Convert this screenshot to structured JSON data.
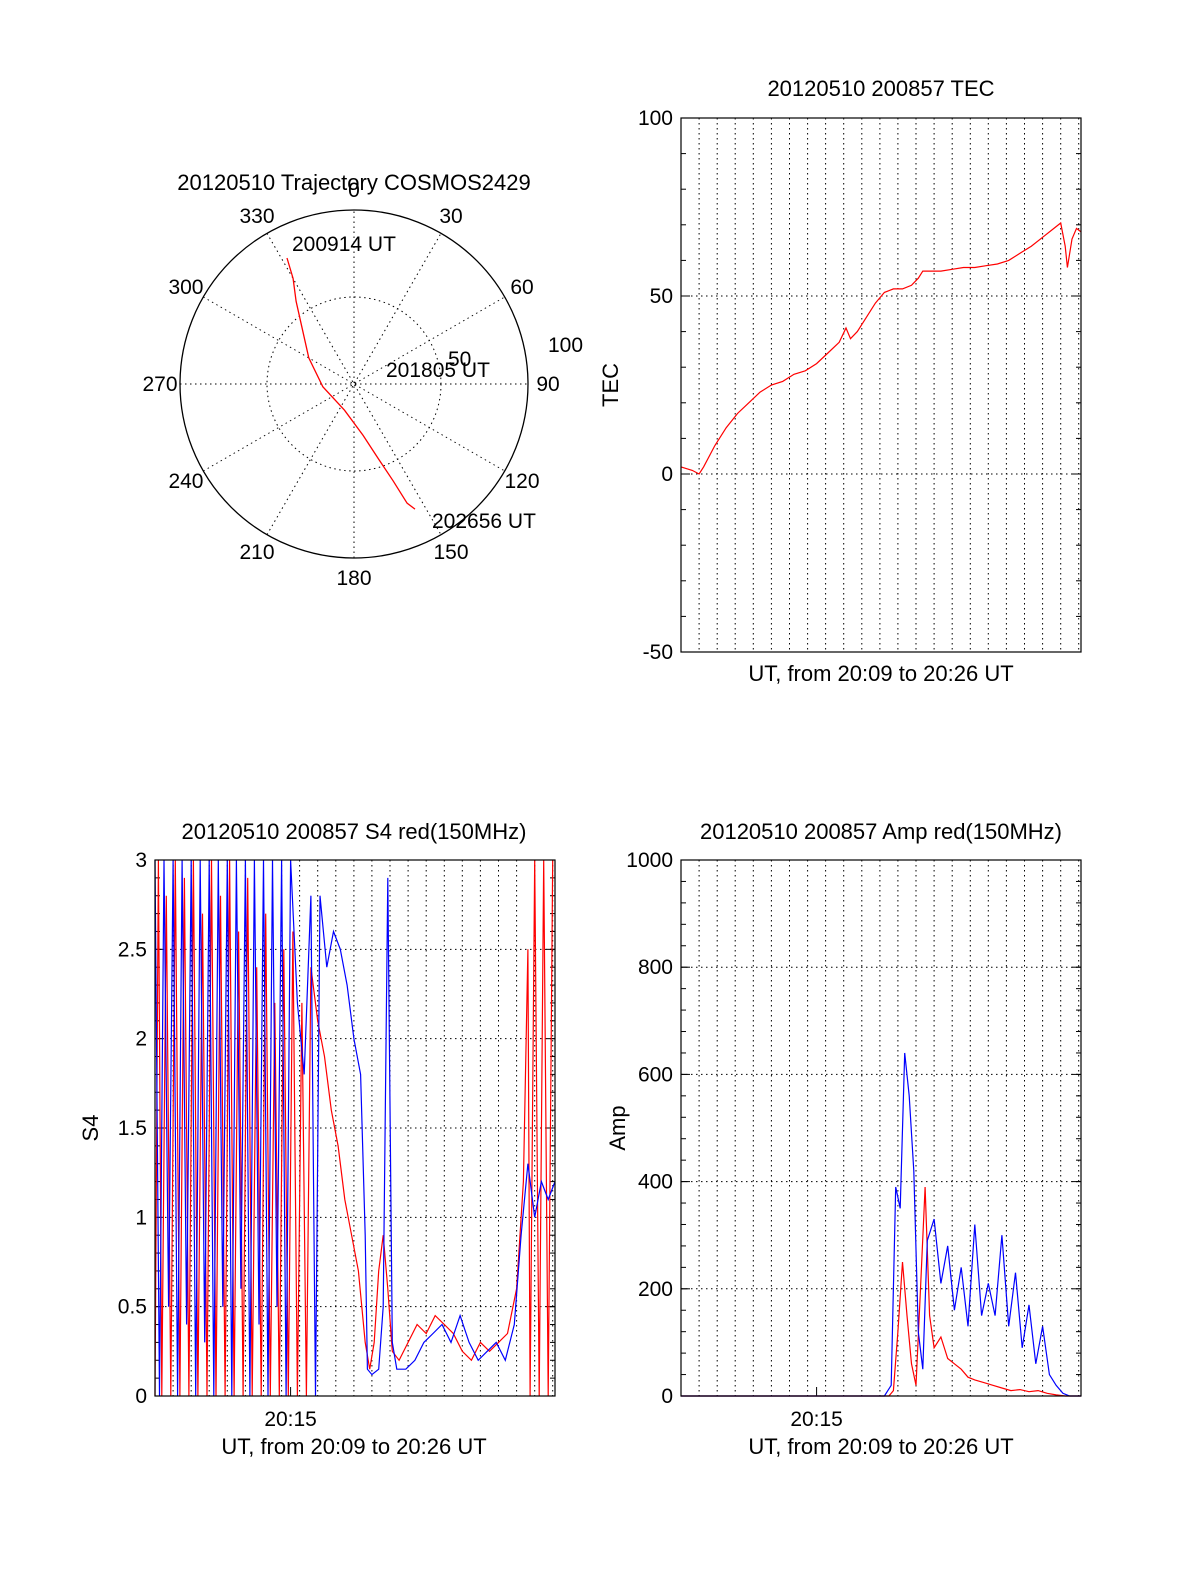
{
  "colors": {
    "red": "#ff0000",
    "blue": "#0000ff",
    "axis": "#000000"
  },
  "chart_data": [
    {
      "id": "trajectory",
      "type": "polar",
      "title": "20120510 Trajectory COSMOS2429",
      "angle_labels": [
        "0",
        "30",
        "60",
        "90",
        "120",
        "150",
        "180",
        "210",
        "240",
        "270",
        "300",
        "330"
      ],
      "radial_labels": [
        "50",
        "100"
      ],
      "rlim": [
        0,
        100
      ],
      "annotations": [
        "200914 UT",
        "201805 UT",
        "202656 UT"
      ],
      "track": [
        {
          "az": 332,
          "r": 82
        },
        {
          "az": 330,
          "r": 70
        },
        {
          "az": 325,
          "r": 58
        },
        {
          "az": 318,
          "r": 45
        },
        {
          "az": 300,
          "r": 30
        },
        {
          "az": 265,
          "r": 18
        },
        {
          "az": 200,
          "r": 16
        },
        {
          "az": 170,
          "r": 30
        },
        {
          "az": 162,
          "r": 45
        },
        {
          "az": 158,
          "r": 60
        },
        {
          "az": 156,
          "r": 75
        },
        {
          "az": 154,
          "r": 80
        }
      ],
      "line_color": "red"
    },
    {
      "id": "tec",
      "type": "line",
      "title": "20120510 200857 TEC",
      "ylabel": "TEC",
      "xlabel": "UT, from 20:09 to 20:26 UT",
      "ylim": [
        -50,
        100
      ],
      "yticks": [
        "-50",
        "0",
        "50",
        "100"
      ],
      "xlim": [
        0,
        17.7
      ],
      "grid_x_every": 0.8,
      "series": [
        {
          "color": "red",
          "points": [
            [
              0,
              2
            ],
            [
              0.5,
              1
            ],
            [
              0.8,
              0
            ],
            [
              1,
              2
            ],
            [
              1.5,
              8
            ],
            [
              2,
              13
            ],
            [
              2.5,
              17
            ],
            [
              3,
              20
            ],
            [
              3.5,
              23
            ],
            [
              4,
              25
            ],
            [
              4.5,
              26
            ],
            [
              5,
              28
            ],
            [
              5.5,
              29
            ],
            [
              6,
              31
            ],
            [
              6.5,
              34
            ],
            [
              7,
              37
            ],
            [
              7.3,
              41
            ],
            [
              7.5,
              38
            ],
            [
              7.8,
              40
            ],
            [
              8.2,
              44
            ],
            [
              8.6,
              48
            ],
            [
              9,
              51
            ],
            [
              9.4,
              52
            ],
            [
              9.8,
              52
            ],
            [
              10.2,
              53
            ],
            [
              10.5,
              55
            ],
            [
              10.7,
              57
            ],
            [
              11,
              57
            ],
            [
              11.5,
              57
            ],
            [
              12,
              57.5
            ],
            [
              12.5,
              58
            ],
            [
              13,
              58
            ],
            [
              13.5,
              58.5
            ],
            [
              14,
              59
            ],
            [
              14.5,
              60
            ],
            [
              15,
              62
            ],
            [
              15.5,
              64
            ],
            [
              16,
              66.5
            ],
            [
              16.5,
              69
            ],
            [
              16.8,
              70.5
            ],
            [
              17,
              64
            ],
            [
              17.1,
              58
            ],
            [
              17.3,
              66
            ],
            [
              17.5,
              69
            ],
            [
              17.7,
              68
            ]
          ]
        }
      ]
    },
    {
      "id": "s4",
      "type": "line",
      "title": "20120510 200857 S4 red(150MHz)",
      "ylabel": "S4",
      "xlabel": "UT, from 20:09 to 20:26 UT",
      "ylim": [
        0,
        3
      ],
      "yticks": [
        "0",
        "0.5",
        "1",
        "1.5",
        "2",
        "2.5",
        "3"
      ],
      "xlim": [
        0,
        17.7
      ],
      "xtick_label": "20:15",
      "xtick_value": 6,
      "grid_x_every": 0.8,
      "series": [
        {
          "name": "",
          "color": "red",
          "points": [
            [
              0,
              0
            ],
            [
              0.15,
              3
            ],
            [
              0.3,
              0
            ],
            [
              0.5,
              2.8
            ],
            [
              0.7,
              0
            ],
            [
              0.9,
              3
            ],
            [
              1.1,
              0
            ],
            [
              1.3,
              2.9
            ],
            [
              1.5,
              0
            ],
            [
              1.7,
              3
            ],
            [
              1.9,
              0
            ],
            [
              2.1,
              2.7
            ],
            [
              2.3,
              0
            ],
            [
              2.5,
              3
            ],
            [
              2.7,
              0
            ],
            [
              2.9,
              2.8
            ],
            [
              3.1,
              0
            ],
            [
              3.3,
              3
            ],
            [
              3.5,
              0
            ],
            [
              3.7,
              2.6
            ],
            [
              3.9,
              0
            ],
            [
              4.1,
              2.9
            ],
            [
              4.3,
              0
            ],
            [
              4.5,
              2.4
            ],
            [
              4.7,
              0
            ],
            [
              4.9,
              2.7
            ],
            [
              5.1,
              0
            ],
            [
              5.3,
              2.2
            ],
            [
              5.5,
              0
            ],
            [
              5.7,
              2.5
            ],
            [
              5.9,
              0
            ],
            [
              6.1,
              2.6
            ],
            [
              6.3,
              0
            ],
            [
              6.5,
              2.2
            ],
            [
              6.7,
              0
            ],
            [
              6.9,
              2.4
            ],
            [
              7.2,
              2.1
            ],
            [
              7.5,
              1.9
            ],
            [
              7.8,
              1.6
            ],
            [
              8.1,
              1.4
            ],
            [
              8.4,
              1.1
            ],
            [
              8.7,
              0.9
            ],
            [
              9,
              0.7
            ],
            [
              9.3,
              0.3
            ],
            [
              9.5,
              0.15
            ],
            [
              9.7,
              0.3
            ],
            [
              9.9,
              0.7
            ],
            [
              10.1,
              0.9
            ],
            [
              10.3,
              0.6
            ],
            [
              10.5,
              0.25
            ],
            [
              10.8,
              0.2
            ],
            [
              11.2,
              0.3
            ],
            [
              11.6,
              0.4
            ],
            [
              12,
              0.35
            ],
            [
              12.4,
              0.45
            ],
            [
              12.8,
              0.4
            ],
            [
              13.2,
              0.35
            ],
            [
              13.6,
              0.25
            ],
            [
              14,
              0.2
            ],
            [
              14.4,
              0.3
            ],
            [
              14.8,
              0.25
            ],
            [
              15.2,
              0.3
            ],
            [
              15.6,
              0.35
            ],
            [
              16,
              0.6
            ],
            [
              16.3,
              1.2
            ],
            [
              16.5,
              2.5
            ],
            [
              16.6,
              0
            ],
            [
              16.8,
              3
            ],
            [
              17,
              0
            ],
            [
              17.2,
              3
            ],
            [
              17.4,
              0
            ],
            [
              17.6,
              3
            ]
          ]
        },
        {
          "name": "",
          "color": "blue",
          "points": [
            [
              0,
              3
            ],
            [
              0.2,
              0
            ],
            [
              0.4,
              3
            ],
            [
              0.6,
              0.5
            ],
            [
              0.8,
              3
            ],
            [
              1,
              0
            ],
            [
              1.2,
              3
            ],
            [
              1.4,
              0.4
            ],
            [
              1.6,
              3
            ],
            [
              1.8,
              0
            ],
            [
              2,
              3
            ],
            [
              2.2,
              0.3
            ],
            [
              2.4,
              3
            ],
            [
              2.6,
              0
            ],
            [
              2.8,
              3
            ],
            [
              3,
              0.5
            ],
            [
              3.2,
              3
            ],
            [
              3.4,
              0
            ],
            [
              3.6,
              3
            ],
            [
              3.8,
              0.6
            ],
            [
              4,
              3
            ],
            [
              4.2,
              0
            ],
            [
              4.4,
              3
            ],
            [
              4.6,
              0.4
            ],
            [
              4.8,
              3
            ],
            [
              5,
              0
            ],
            [
              5.2,
              3
            ],
            [
              5.4,
              0.5
            ],
            [
              5.6,
              3
            ],
            [
              5.8,
              0
            ],
            [
              6,
              3
            ],
            [
              6.3,
              2.2
            ],
            [
              6.6,
              1.8
            ],
            [
              6.9,
              2.8
            ],
            [
              7.1,
              0
            ],
            [
              7.3,
              2.8
            ],
            [
              7.6,
              2.4
            ],
            [
              7.9,
              2.6
            ],
            [
              8.2,
              2.5
            ],
            [
              8.5,
              2.3
            ],
            [
              8.8,
              2.0
            ],
            [
              9.1,
              1.8
            ],
            [
              9.3,
              0.9
            ],
            [
              9.4,
              0.15
            ],
            [
              9.6,
              0.12
            ],
            [
              9.9,
              0.15
            ],
            [
              10.1,
              0.5
            ],
            [
              10.3,
              2.9
            ],
            [
              10.5,
              0.3
            ],
            [
              10.7,
              0.15
            ],
            [
              11.1,
              0.15
            ],
            [
              11.5,
              0.2
            ],
            [
              11.9,
              0.3
            ],
            [
              12.3,
              0.35
            ],
            [
              12.7,
              0.4
            ],
            [
              13.1,
              0.3
            ],
            [
              13.5,
              0.45
            ],
            [
              13.9,
              0.3
            ],
            [
              14.3,
              0.2
            ],
            [
              14.7,
              0.25
            ],
            [
              15.1,
              0.3
            ],
            [
              15.5,
              0.2
            ],
            [
              15.9,
              0.4
            ],
            [
              16.2,
              0.9
            ],
            [
              16.5,
              1.3
            ],
            [
              16.8,
              1.0
            ],
            [
              17.1,
              1.2
            ],
            [
              17.4,
              1.1
            ],
            [
              17.7,
              1.2
            ]
          ]
        }
      ]
    },
    {
      "id": "amp",
      "type": "line",
      "title": "20120510 200857 Amp red(150MHz)",
      "ylabel": "Amp",
      "xlabel": "UT, from 20:09 to 20:26 UT",
      "ylim": [
        0,
        1000
      ],
      "yticks": [
        "0",
        "200",
        "400",
        "600",
        "800",
        "1000"
      ],
      "xlim": [
        0,
        17.7
      ],
      "xtick_label": "20:15",
      "xtick_value": 6,
      "grid_x_every": 0.8,
      "series": [
        {
          "name": "",
          "color": "red",
          "points": [
            [
              0,
              0
            ],
            [
              9.2,
              0
            ],
            [
              9.4,
              10
            ],
            [
              9.6,
              120
            ],
            [
              9.8,
              250
            ],
            [
              10,
              150
            ],
            [
              10.2,
              60
            ],
            [
              10.4,
              20
            ],
            [
              10.6,
              200
            ],
            [
              10.8,
              390
            ],
            [
              11,
              150
            ],
            [
              11.2,
              90
            ],
            [
              11.5,
              110
            ],
            [
              11.8,
              70
            ],
            [
              12.1,
              60
            ],
            [
              12.4,
              50
            ],
            [
              12.7,
              35
            ],
            [
              13,
              30
            ],
            [
              13.4,
              25
            ],
            [
              13.8,
              20
            ],
            [
              14.2,
              15
            ],
            [
              14.6,
              10
            ],
            [
              15,
              12
            ],
            [
              15.4,
              8
            ],
            [
              15.8,
              10
            ],
            [
              16.2,
              5
            ],
            [
              16.6,
              2
            ],
            [
              17,
              0
            ],
            [
              17.7,
              0
            ]
          ]
        },
        {
          "name": "",
          "color": "blue",
          "points": [
            [
              0,
              0
            ],
            [
              9,
              0
            ],
            [
              9.3,
              20
            ],
            [
              9.5,
              390
            ],
            [
              9.7,
              350
            ],
            [
              9.9,
              640
            ],
            [
              10.1,
              560
            ],
            [
              10.3,
              420
            ],
            [
              10.5,
              120
            ],
            [
              10.7,
              50
            ],
            [
              10.9,
              290
            ],
            [
              11.2,
              330
            ],
            [
              11.5,
              210
            ],
            [
              11.8,
              280
            ],
            [
              12.1,
              160
            ],
            [
              12.4,
              240
            ],
            [
              12.7,
              130
            ],
            [
              13,
              320
            ],
            [
              13.3,
              150
            ],
            [
              13.6,
              210
            ],
            [
              13.9,
              150
            ],
            [
              14.2,
              300
            ],
            [
              14.5,
              130
            ],
            [
              14.8,
              230
            ],
            [
              15.1,
              90
            ],
            [
              15.4,
              170
            ],
            [
              15.7,
              60
            ],
            [
              16,
              130
            ],
            [
              16.3,
              40
            ],
            [
              16.6,
              20
            ],
            [
              16.9,
              5
            ],
            [
              17.2,
              0
            ],
            [
              17.7,
              0
            ]
          ]
        }
      ]
    }
  ]
}
